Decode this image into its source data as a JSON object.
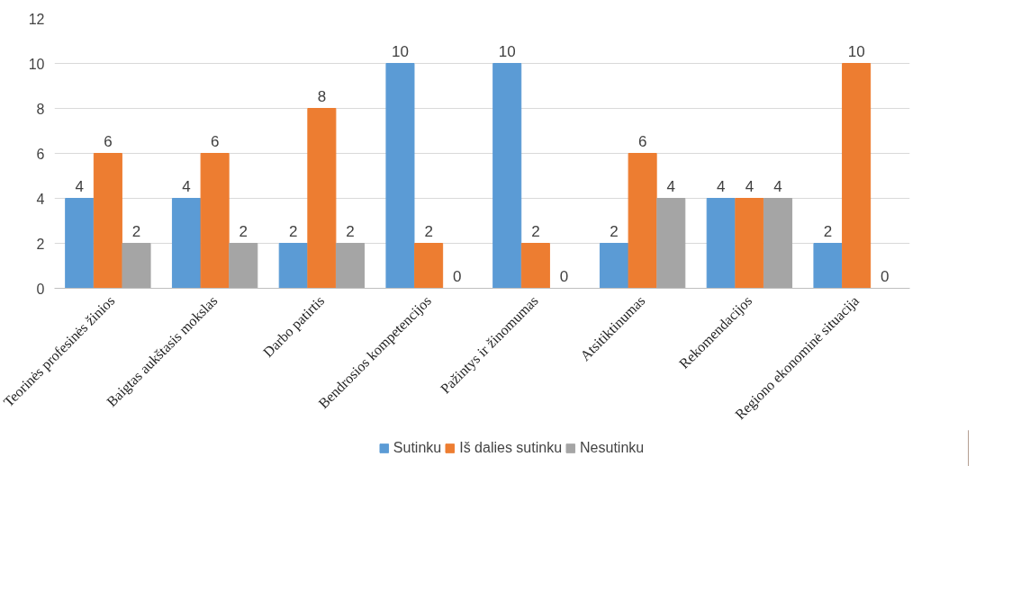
{
  "chart_data": {
    "type": "bar",
    "categories": [
      "Teorinės profesinės žinios",
      "Baigtas aukštasis mokslas",
      "Darbo patirtis",
      "Bendrosios kompetencijos",
      "Pažintys ir žinomumas",
      "Atsitiktinumas",
      "Rekomendacijos",
      "Regiono ekonominė situacija"
    ],
    "series": [
      {
        "name": "Sutinku",
        "color": "#5b9bd5",
        "values": [
          4,
          4,
          2,
          10,
          10,
          2,
          4,
          2
        ]
      },
      {
        "name": "Iš dalies sutinku",
        "color": "#ed7d31",
        "values": [
          6,
          6,
          8,
          2,
          2,
          6,
          4,
          10
        ]
      },
      {
        "name": "Nesutinku",
        "color": "#a5a5a5",
        "values": [
          2,
          2,
          2,
          0,
          0,
          4,
          4,
          0
        ]
      }
    ],
    "ylim": [
      0,
      12
    ],
    "yticks": [
      0,
      2,
      4,
      6,
      8,
      10,
      12
    ],
    "grid": "y",
    "legend": "bottom",
    "data_labels": true
  }
}
